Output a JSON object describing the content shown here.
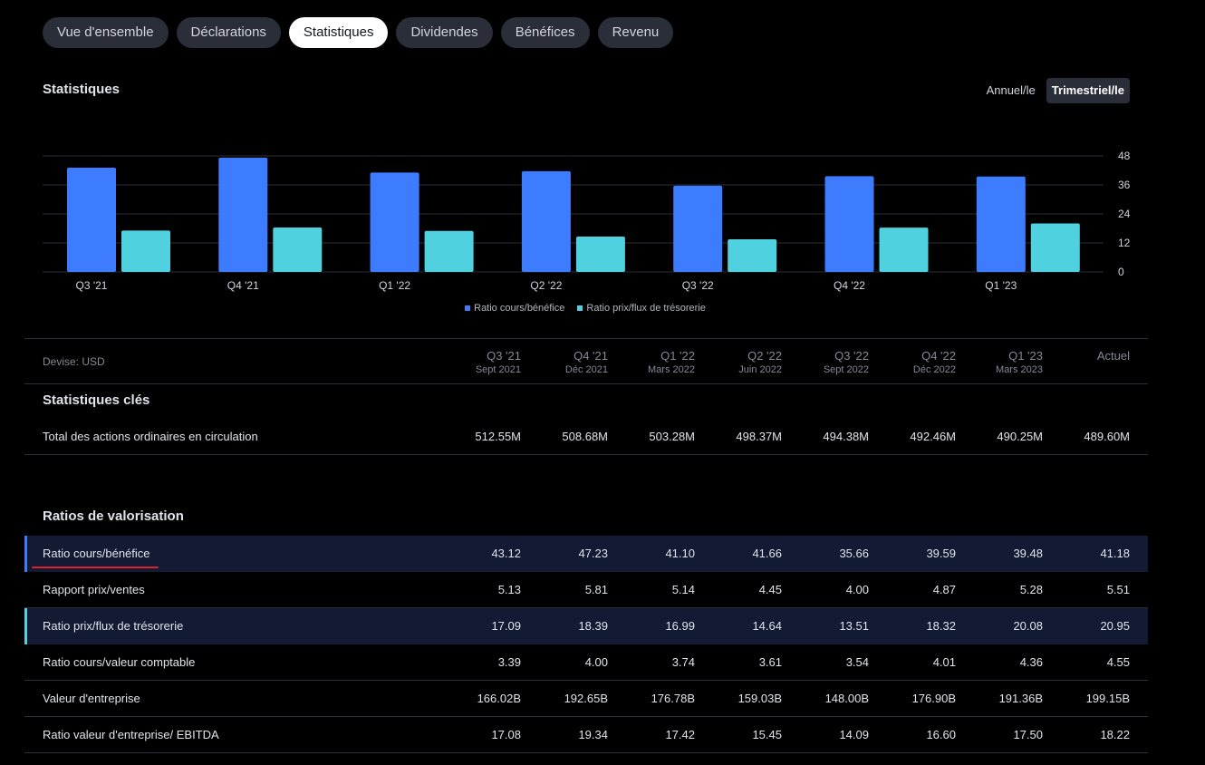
{
  "tabs": [
    {
      "label": "Vue d'ensemble",
      "active": false
    },
    {
      "label": "Déclarations",
      "active": false
    },
    {
      "label": "Statistiques",
      "active": true
    },
    {
      "label": "Dividendes",
      "active": false
    },
    {
      "label": "Bénéfices",
      "active": false
    },
    {
      "label": "Revenu",
      "active": false
    }
  ],
  "section_title": "Statistiques",
  "period_toggle": {
    "annual": "Annuel/le",
    "quarterly": "Trimestriel/le",
    "selected": "quarterly"
  },
  "colors": {
    "series_pe": "#3d7cff",
    "series_pcf": "#4fd1e0",
    "highlight_row": "#131a34",
    "accent_underline": "#e0202b"
  },
  "chart_data": {
    "type": "bar",
    "categories": [
      "Q3 '21",
      "Q4 '21",
      "Q1 '22",
      "Q2 '22",
      "Q3 '22",
      "Q4 '22",
      "Q1 '23"
    ],
    "series": [
      {
        "name": "Ratio cours/bénéfice",
        "values": [
          43.12,
          47.23,
          41.1,
          41.66,
          35.66,
          39.59,
          39.48
        ]
      },
      {
        "name": "Ratio prix/flux de trésorerie",
        "values": [
          17.09,
          18.39,
          16.99,
          14.64,
          13.51,
          18.32,
          20.08
        ]
      }
    ],
    "yticks": [
      0,
      12,
      24,
      36,
      48
    ],
    "ylim": [
      0,
      48
    ],
    "grid": true,
    "legend_position": "bottom-center"
  },
  "table": {
    "currency_label": "Devise: USD",
    "columns": [
      {
        "q": "Q3 '21",
        "d": "Sept 2021"
      },
      {
        "q": "Q4 '21",
        "d": "Déc 2021"
      },
      {
        "q": "Q1 '22",
        "d": "Mars 2022"
      },
      {
        "q": "Q2 '22",
        "d": "Juin 2022"
      },
      {
        "q": "Q3 '22",
        "d": "Sept 2022"
      },
      {
        "q": "Q4 '22",
        "d": "Déc 2022"
      },
      {
        "q": "Q1 '23",
        "d": "Mars 2023"
      },
      {
        "q": "Actuel",
        "d": ""
      }
    ],
    "groups": [
      {
        "title": "Statistiques clés",
        "rows": [
          {
            "label": "Total des actions ordinaires en circulation",
            "values": [
              "512.55M",
              "508.68M",
              "503.28M",
              "498.37M",
              "494.38M",
              "492.46M",
              "490.25M",
              "489.60M"
            ],
            "highlight": false
          }
        ]
      },
      {
        "title": "Ratios de valorisation",
        "rows": [
          {
            "label": "Ratio cours/bénéfice",
            "values": [
              "43.12",
              "47.23",
              "41.10",
              "41.66",
              "35.66",
              "39.59",
              "39.48",
              "41.18"
            ],
            "highlight": true,
            "marker": "#3d7cff",
            "underline": true
          },
          {
            "label": "Rapport prix/ventes",
            "values": [
              "5.13",
              "5.81",
              "5.14",
              "4.45",
              "4.00",
              "4.87",
              "5.28",
              "5.51"
            ],
            "highlight": false
          },
          {
            "label": "Ratio prix/flux de trésorerie",
            "values": [
              "17.09",
              "18.39",
              "16.99",
              "14.64",
              "13.51",
              "18.32",
              "20.08",
              "20.95"
            ],
            "highlight": true,
            "marker": "#4fd1e0"
          },
          {
            "label": "Ratio cours/valeur comptable",
            "values": [
              "3.39",
              "4.00",
              "3.74",
              "3.61",
              "3.54",
              "4.01",
              "4.36",
              "4.55"
            ],
            "highlight": false
          },
          {
            "label": "Valeur d'entreprise",
            "values": [
              "166.02B",
              "192.65B",
              "176.78B",
              "159.03B",
              "148.00B",
              "176.90B",
              "191.36B",
              "199.15B"
            ],
            "highlight": false
          },
          {
            "label": "Ratio valeur d'entreprise/ EBITDA",
            "values": [
              "17.08",
              "19.34",
              "17.42",
              "15.45",
              "14.09",
              "16.60",
              "17.50",
              "18.22"
            ],
            "highlight": false
          }
        ]
      }
    ]
  }
}
